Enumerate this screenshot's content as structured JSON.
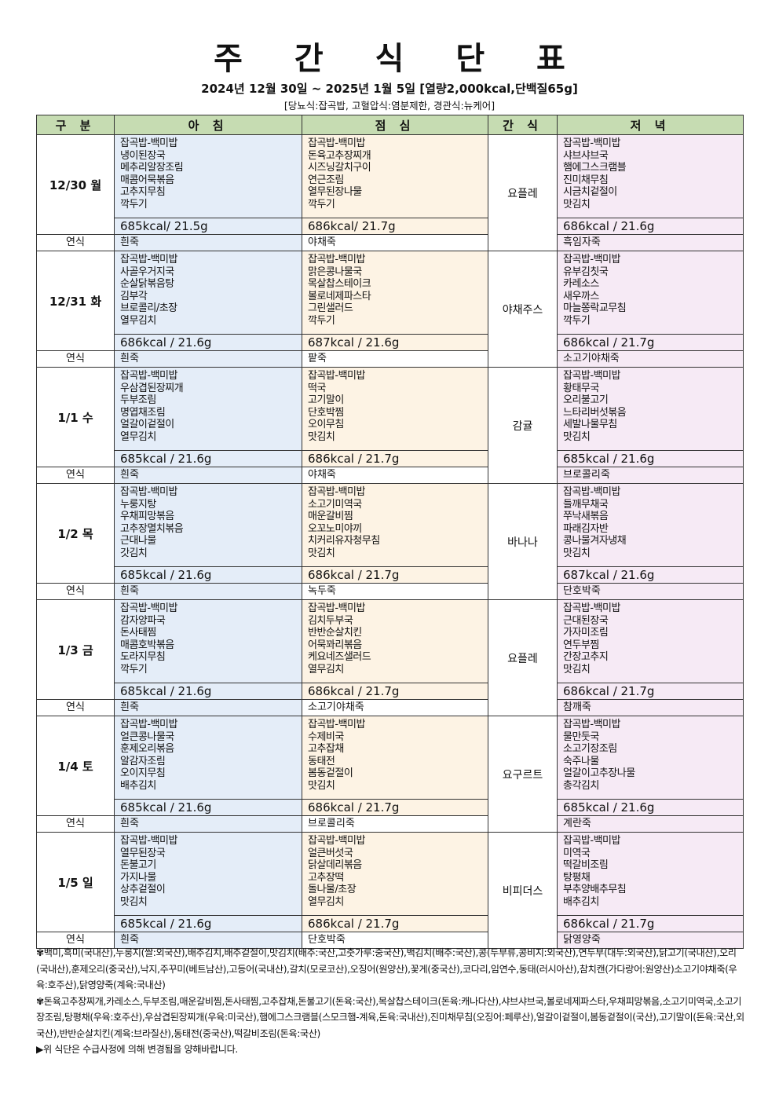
{
  "title": "주 간 식 단 표",
  "subtitle": "2024년 12월 30일 ~ 2025년 1월 5일 [열량2,000kcal,단백질65g]",
  "diet_note": "[당뇨식:잡곡밥, 고혈압식:염분제한, 경관식:뉴케어]",
  "headers": {
    "category": "구 분",
    "breakfast": "아 침",
    "lunch": "점 심",
    "snack": "간 식",
    "dinner": "저 녁"
  },
  "soft_label": "연식",
  "colors": {
    "header": "#c6dcb2",
    "breakfast": "#e4edf8",
    "lunch": "#fdf3e4",
    "dinner": "#f6eaf5"
  },
  "days": [
    {
      "day": "12/30 월",
      "breakfast": {
        "menu": [
          "잡곡밥-백미밥",
          "냉이된장국",
          "메추리알장조림",
          "매콤어묵볶음",
          "고추지무침",
          "깍두기"
        ],
        "kcal": "685kcal/ 21.5g",
        "soft": "흰죽"
      },
      "lunch": {
        "menu": [
          "잡곡밥-백미밥",
          "돈육고추장찌개",
          "시즈닝갈치구이",
          "연근조림",
          "열무된장나물",
          "깍두기"
        ],
        "kcal": "686kcal/ 21.7g",
        "soft": "야채죽"
      },
      "snack": "요플레",
      "dinner": {
        "menu": [
          "잡곡밥-백미밥",
          "샤브샤브국",
          "햄에그스크램블",
          "진미채무침",
          "시금치겉절이",
          "맛김치"
        ],
        "kcal": "686kcal / 21.6g",
        "soft": "흑임자죽"
      }
    },
    {
      "day": "12/31 화",
      "breakfast": {
        "menu": [
          "잡곡밥-백미밥",
          "사골우거지국",
          "순살닭볶음탕",
          "김부각",
          "브로콜리/초장",
          "열무김치"
        ],
        "kcal": "686kcal / 21.6g",
        "soft": "흰죽"
      },
      "lunch": {
        "menu": [
          "잡곡밥-백미밥",
          "맑은콩나물국",
          "목살찹스테이크",
          "볼로네제파스타",
          "그린샐러드",
          "깍두기"
        ],
        "kcal": "687kcal / 21.6g",
        "soft": "팥죽"
      },
      "snack": "야채주스",
      "dinner": {
        "menu": [
          "잡곡밥-백미밥",
          "유부김칫국",
          "카레소스",
          "새우까스",
          "마늘쫑락교무침",
          "깍두기"
        ],
        "kcal": "686kcal / 21.7g",
        "soft": "소고기야채죽"
      }
    },
    {
      "day": "1/1 수",
      "breakfast": {
        "menu": [
          "잡곡밥-백미밥",
          "우삼겹된장찌개",
          "두부조림",
          "명엽채조림",
          "얼갈이겉절이",
          "열무김치"
        ],
        "kcal": "685kcal / 21.6g",
        "soft": "흰죽"
      },
      "lunch": {
        "menu": [
          "잡곡밥-백미밥",
          "떡국",
          "고기말이",
          "단호박찜",
          "오이무침",
          "맛김치"
        ],
        "kcal": "686kcal / 21.7g",
        "soft": "야채죽"
      },
      "snack": "감귤",
      "dinner": {
        "menu": [
          "잡곡밥-백미밥",
          "황태무국",
          "오리불고기",
          "느타리버섯볶음",
          "세발나물무침",
          "맛김치"
        ],
        "kcal": "685kcal / 21.6g",
        "soft": "브로콜리죽"
      }
    },
    {
      "day": "1/2 목",
      "breakfast": {
        "menu": [
          "잡곡밥-백미밥",
          "누룽지탕",
          "우채피망볶음",
          "고추장멸치볶음",
          "근대나물",
          "갓김치"
        ],
        "kcal": "685kcal / 21.6g",
        "soft": "흰죽"
      },
      "lunch": {
        "menu": [
          "잡곡밥-백미밥",
          "소고기미역국",
          "매운갈비찜",
          "오꼬노미야끼",
          "치커리유자청무침",
          "맛김치"
        ],
        "kcal": "686kcal / 21.7g",
        "soft": "녹두죽"
      },
      "snack": "바나나",
      "dinner": {
        "menu": [
          "잡곡밥-백미밥",
          "들깨무채국",
          "쭈낙새볶음",
          "파래김자반",
          "콩나물겨자냉채",
          "맛김치"
        ],
        "kcal": "687kcal   / 21.6g",
        "soft": "단호박죽"
      }
    },
    {
      "day": "1/3 금",
      "breakfast": {
        "menu": [
          "잡곡밥-백미밥",
          "감자양파국",
          "돈사태찜",
          "매콤호박볶음",
          "도라지무침",
          "깍두기"
        ],
        "kcal": "685kcal / 21.6g",
        "soft": "흰죽"
      },
      "lunch": {
        "menu": [
          "잡곡밥-백미밥",
          "김치두부국",
          "반반순살치킨",
          "어묵꽈리볶음",
          "케요네즈샐러드",
          "열무김치"
        ],
        "kcal": "686kcal / 21.7g",
        "soft": "소고기야채죽"
      },
      "snack": "요플레",
      "dinner": {
        "menu": [
          "잡곡밥-백미밥",
          "근대된장국",
          "가자미조림",
          "연두부찜",
          "간장고추지",
          "맛김치"
        ],
        "kcal": "686kcal   / 21.7g",
        "soft": "참깨죽"
      }
    },
    {
      "day": "1/4 토",
      "breakfast": {
        "menu": [
          "잡곡밥-백미밥",
          "얼큰콩나물국",
          "훈제오리볶음",
          "알감자조림",
          "오이지무침",
          "배추김치"
        ],
        "kcal": "685kcal / 21.6g",
        "soft": "흰죽"
      },
      "lunch": {
        "menu": [
          "잡곡밥-백미밥",
          "수제비국",
          "고추잡채",
          "동태전",
          "봄동겉절이",
          "맛김치"
        ],
        "kcal": "686kcal / 21.7g",
        "soft": "브로콜리죽"
      },
      "snack": "요구르트",
      "dinner": {
        "menu": [
          "잡곡밥-백미밥",
          "물만둣국",
          "소고기장조림",
          "숙주나물",
          "얼갈이고추장나물",
          "총각김치"
        ],
        "kcal": "685kcal / 21.6g",
        "soft": "계란죽"
      }
    },
    {
      "day": "1/5 일",
      "breakfast": {
        "menu": [
          "잡곡밥-백미밥",
          "열무된장국",
          "돈불고기",
          "가지나물",
          "상추겉절이",
          "맛김치"
        ],
        "kcal": "685kcal / 21.6g",
        "soft": "흰죽"
      },
      "lunch": {
        "menu": [
          "잡곡밥-백미밥",
          "얼큰버섯국",
          "닭살데리볶음",
          "고추장떡",
          "돌나물/초장",
          "열무김치"
        ],
        "kcal": "686kcal / 21.7g",
        "soft": "단호박죽"
      },
      "snack": "비피더스",
      "dinner": {
        "menu": [
          "잡곡밥-백미밥",
          "미역국",
          "떡갈비조림",
          "탕평채",
          "부추양배추무침",
          "배추김치"
        ],
        "kcal": "686kcal / 21.7g",
        "soft": "닭영양죽"
      }
    }
  ],
  "notes": {
    "origin1": "✾백미,흑미(국내산),누룽지(쌀:외국산),배추김치,배추겉절이,맛김치(배추:국산,고춧가루:중국산),백김치(배추:국산),콩(두부류,콩비지:외국산),연두부(대두:외국산),닭고기(국내산),오리(국내산),훈제오리(중국산),낙지,주꾸미(베트남산),고등어(국내산),갈치(모로코산),오징어(원양산),꽃게(중국산),코다리,임연수,동태(러시아산),참치캔(가다랑어:원양산)소고기야채죽(우육:호주산),닭영양죽(계육:국내산)",
    "origin2": "✾돈육고추장찌개,카레소스,두부조림,매운갈비찜,돈사태찜,고추잡채,돈불고기(돈육:국산),목살찹스테이크(돈육:캐나다산),샤브샤브국,볼로네제파스타,우채피망볶음,소고기미역국,소고기장조림,탕평채(우육:호주산),우삼겹된장찌개(우육:미국산),햄에그스크램블(스모크햄-계육,돈육:국내산),진미채무침(오징어:페루산),얼갈이겉절이,봄동겉절이(국산),고기말이(돈육:국산,외국산),반반순살치킨(계육:브라질산),동태전(중국산),떡갈비조림(돈육:국산)",
    "disclaimer": "▶위 식단은 수급사정에 의해 변경됨을 양해바랍니다."
  }
}
